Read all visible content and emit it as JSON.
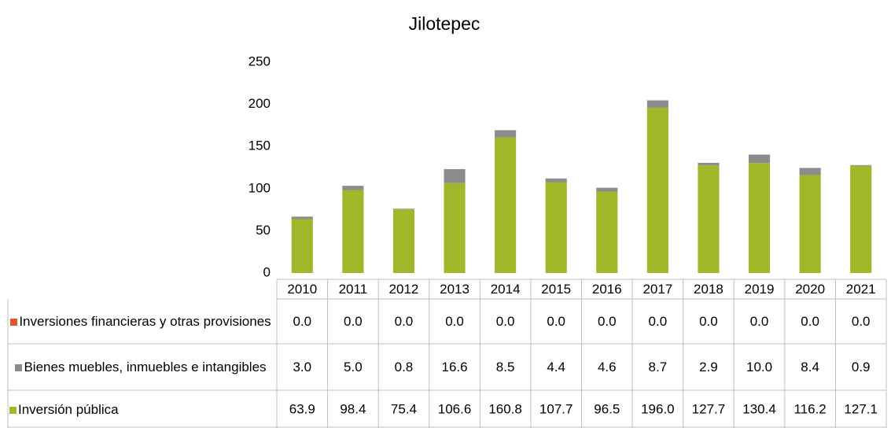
{
  "chart_data": {
    "type": "stacked_bar",
    "title": "Jilotepec",
    "categories": [
      "2010",
      "2011",
      "2012",
      "2013",
      "2014",
      "2015",
      "2016",
      "2017",
      "2018",
      "2019",
      "2020",
      "2021"
    ],
    "series": [
      {
        "name": "Inversiones financieras y otras provisiones",
        "color": "#e8532a",
        "values": [
          0,
          0,
          0,
          0,
          0,
          0,
          0,
          0,
          0,
          0,
          0,
          0
        ],
        "value_labels": [
          "0.0",
          "0.0",
          "0.0",
          "0.0",
          "0.0",
          "0.0",
          "0.0",
          "0.0",
          "0.0",
          "0.0",
          "0.0",
          "0.0"
        ]
      },
      {
        "name": "Bienes muebles, inmuebles e intangibles",
        "color": "#8c8c8c",
        "values": [
          3,
          5,
          0.8,
          16.6,
          8.5,
          4.4,
          4.6,
          8.7,
          2.9,
          10,
          8.4,
          0.9
        ],
        "value_labels": [
          "3.0",
          "5.0",
          "0.8",
          "16.6",
          "8.5",
          "4.4",
          "4.6",
          "8.7",
          "2.9",
          "10.0",
          "8.4",
          "0.9"
        ]
      },
      {
        "name": "Inversión pública",
        "color": "#9fb82a",
        "values": [
          63.9,
          98.4,
          75.4,
          106.6,
          160.8,
          107.7,
          96.5,
          196,
          127.7,
          130.4,
          116.2,
          127.1
        ],
        "value_labels": [
          "63.9",
          "98.4",
          "75.4",
          "106.6",
          "160.8",
          "107.7",
          "96.5",
          "196.0",
          "127.7",
          "130.4",
          "116.2",
          "127.1"
        ]
      }
    ],
    "ylim": [
      0,
      250
    ],
    "yticks": [
      0,
      50,
      100,
      150,
      200,
      250
    ],
    "grid": false
  }
}
